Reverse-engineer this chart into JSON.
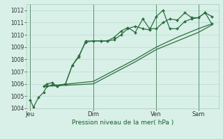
{
  "background_color": "#d8f0e8",
  "grid_color": "#b8ddd0",
  "line_color": "#2d6e3e",
  "xlabel": "Pression niveau de la mer( hPa )",
  "ylim": [
    1004,
    1012.5
  ],
  "yticks": [
    1004,
    1005,
    1006,
    1007,
    1008,
    1009,
    1010,
    1011,
    1012
  ],
  "day_labels": [
    "Jeu",
    "Dim",
    "Ven",
    "Sam"
  ],
  "day_positions": [
    0.0,
    0.375,
    0.75,
    1.0
  ],
  "xlim": [
    0.0,
    1.1
  ],
  "series1_x": [
    0.0,
    0.02,
    0.05,
    0.08,
    0.1,
    0.13,
    0.16,
    0.21,
    0.25,
    0.29,
    0.33,
    0.375,
    0.42,
    0.46,
    0.5,
    0.54,
    0.58,
    0.625,
    0.67,
    0.71,
    0.75,
    0.79,
    0.83,
    0.875,
    0.92,
    0.96,
    1.0,
    1.04,
    1.08
  ],
  "series1_y": [
    1004.7,
    1004.1,
    1004.9,
    1005.3,
    1005.8,
    1005.9,
    1005.8,
    1006.0,
    1007.5,
    1008.3,
    1009.4,
    1009.5,
    1009.5,
    1009.5,
    1009.6,
    1010.0,
    1010.5,
    1010.7,
    1010.5,
    1010.4,
    1011.5,
    1012.0,
    1010.5,
    1010.5,
    1011.1,
    1011.3,
    1011.4,
    1011.8,
    1011.5
  ],
  "series2_x": [
    0.08,
    0.1,
    0.13,
    0.16,
    0.21,
    0.25,
    0.29,
    0.33,
    0.375,
    0.42,
    0.46,
    0.5,
    0.54,
    0.58,
    0.625,
    0.67,
    0.71,
    0.75,
    0.79,
    0.83,
    0.875,
    0.92,
    0.96,
    1.0,
    1.04,
    1.08
  ],
  "series2_y": [
    1005.8,
    1006.0,
    1006.1,
    1005.8,
    1006.0,
    1007.5,
    1008.2,
    1009.5,
    1009.5,
    1009.5,
    1009.5,
    1009.8,
    1010.3,
    1010.6,
    1010.2,
    1011.3,
    1010.5,
    1010.5,
    1011.0,
    1011.3,
    1011.2,
    1011.8,
    1011.4,
    1011.4,
    1011.8,
    1010.9
  ],
  "series3_x": [
    0.08,
    0.375,
    0.625,
    0.75,
    0.875,
    1.0,
    1.08
  ],
  "series3_y": [
    1005.8,
    1006.2,
    1008.0,
    1009.0,
    1009.8,
    1010.5,
    1010.9
  ],
  "series4_x": [
    0.08,
    0.375,
    0.625,
    0.75,
    0.875,
    1.0,
    1.08
  ],
  "series4_y": [
    1005.8,
    1006.0,
    1007.8,
    1008.8,
    1009.5,
    1010.2,
    1010.8
  ]
}
